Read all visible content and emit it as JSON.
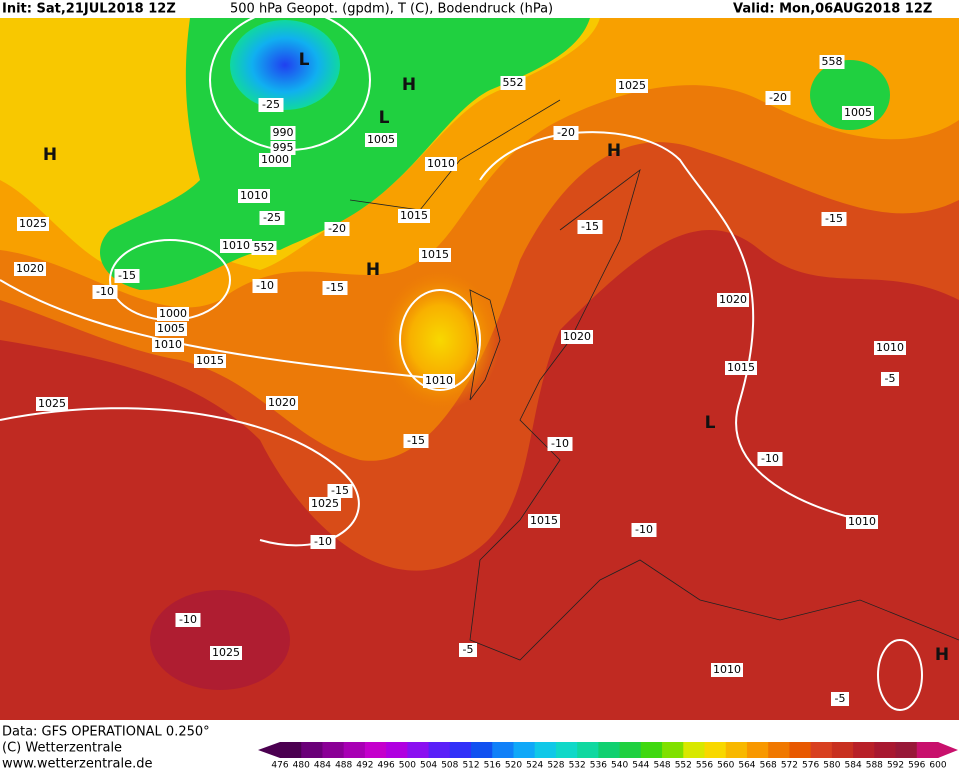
{
  "header": {
    "init": "Init: Sat,21JUL2018 12Z",
    "title": "500 hPa Geopot. (gpdm), T (C), Bodendruck (hPa)",
    "valid": "Valid: Mon,06AUG2018 12Z"
  },
  "map_labels": [
    "1025",
    "-20",
    "558",
    "1005",
    "-20",
    "H",
    "-15",
    "-15",
    "1020",
    "1020",
    "1015",
    "1010",
    "-5",
    "L",
    "-10",
    "-10",
    "1010",
    "-10",
    "1015",
    "-5",
    "1010",
    "-5",
    "H",
    "1025",
    "-10",
    "-10",
    "-15",
    "1025",
    "-15",
    "1020",
    "1010",
    "1015",
    "H",
    "-15",
    "-10",
    "-20",
    "1015",
    "1010",
    "1005",
    "L",
    "H",
    "552",
    "-25",
    "990",
    "995",
    "1000",
    "L",
    "1010",
    "-25",
    "1010",
    "552",
    "-15",
    "-10",
    "1000",
    "1005",
    "1010",
    "1015",
    "1025",
    "1020",
    "H",
    "1025"
  ],
  "footer": {
    "data": "Data: GFS OPERATIONAL 0.250°",
    "copyright": "(C) Wetterzentrale",
    "url": "www.wetterzentrale.de"
  },
  "colorbar": {
    "ticks": [
      476,
      480,
      484,
      488,
      492,
      496,
      500,
      504,
      508,
      512,
      516,
      520,
      524,
      528,
      532,
      536,
      540,
      544,
      548,
      552,
      556,
      560,
      564,
      568,
      572,
      576,
      580,
      584,
      588,
      592,
      596,
      600
    ],
    "colors": [
      "#4b0050",
      "#6a0078",
      "#8a0096",
      "#a800b4",
      "#c400cc",
      "#b000e0",
      "#8a10f0",
      "#5a20f8",
      "#3030f8",
      "#1050f0",
      "#1080f8",
      "#10a8f8",
      "#10c8e8",
      "#10d8c8",
      "#10d8a0",
      "#10d070",
      "#20d040",
      "#40d810",
      "#80e000",
      "#d8e800",
      "#f8d800",
      "#f8b800",
      "#f89800",
      "#f07800",
      "#e85800",
      "#d84020",
      "#c83020",
      "#b82028",
      "#a81830",
      "#981838",
      "#c8106c"
    ]
  }
}
